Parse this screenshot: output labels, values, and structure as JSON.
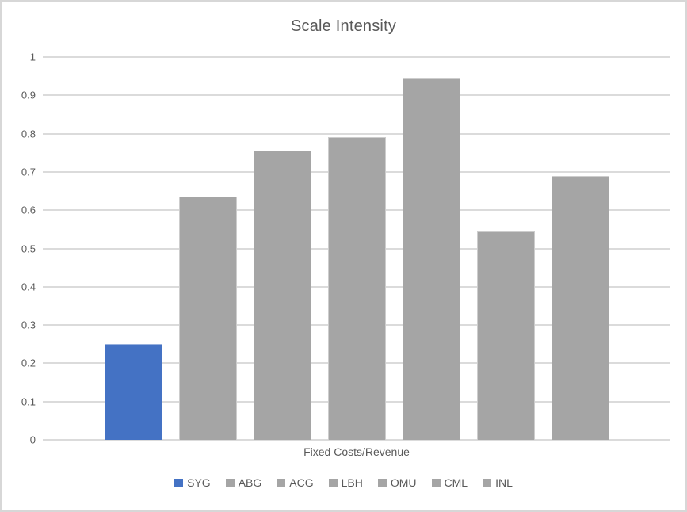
{
  "chart_data": {
    "type": "bar",
    "title": "Scale Intensity",
    "xlabel": "Fixed Costs/Revenue",
    "ylabel": "",
    "ylim": [
      0,
      1
    ],
    "ytick_step": 0.1,
    "yticks": [
      "0",
      "0.1",
      "0.2",
      "0.3",
      "0.4",
      "0.5",
      "0.6",
      "0.7",
      "0.8",
      "0.9",
      "1"
    ],
    "categories": [
      "SYG",
      "ABG",
      "ACG",
      "LBH",
      "OMU",
      "CML",
      "INL"
    ],
    "values": [
      0.25,
      0.635,
      0.755,
      0.79,
      0.945,
      0.545,
      0.69
    ],
    "series_colors": [
      "#4472C4",
      "#A5A5A5",
      "#A5A5A5",
      "#A5A5A5",
      "#A5A5A5",
      "#A5A5A5",
      "#A5A5A5"
    ],
    "grid": true,
    "legend_position": "bottom"
  },
  "colors": {
    "accent_blue": "#4472C4",
    "series_gray": "#A5A5A5",
    "grid_line": "#DBDBDB",
    "text": "#595959",
    "border": "#D7D7D7"
  }
}
